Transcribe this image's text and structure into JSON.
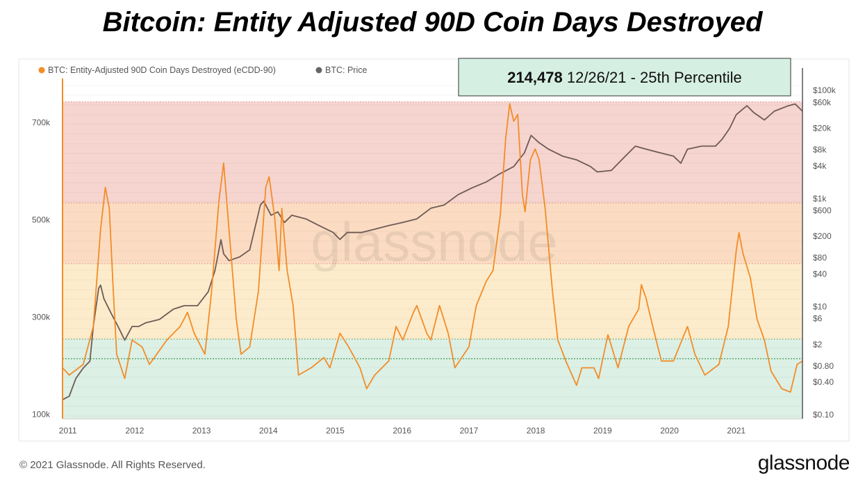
{
  "title": "Bitcoin: Entity Adjusted 90D Coin Days Destroyed",
  "footer": {
    "copyright": "© 2021 Glassnode. All Rights Reserved.",
    "logo": "glassnode"
  },
  "watermark": "glassnode",
  "annotation": {
    "value": "214,478",
    "text": " 12/26/21 - 25th Percentile"
  },
  "chart_data": {
    "type": "line",
    "title": "Bitcoin: Entity Adjusted 90D Coin Days Destroyed",
    "legend_position": "top-left",
    "x_ticks": [
      "2011",
      "2012",
      "2013",
      "2014",
      "2015",
      "2016",
      "2017",
      "2018",
      "2019",
      "2020",
      "2021"
    ],
    "xlim": [
      2010.92,
      2021.99
    ],
    "y_left": {
      "ticks": [
        "100k",
        "300k",
        "500k",
        "700k"
      ],
      "tick_values": [
        100,
        300,
        500,
        700
      ],
      "unit": "k",
      "ylim": [
        91,
        791
      ]
    },
    "y_right": {
      "scale": "log",
      "ticks": [
        "$100k",
        "$60k",
        "$20k",
        "$8k",
        "$4k",
        "$1k",
        "$600",
        "$200",
        "$80",
        "$40",
        "$10",
        "$6",
        "$2",
        "$0.80",
        "$0.40",
        "$0.10"
      ],
      "tick_values": [
        100000,
        60000,
        20000,
        8000,
        4000,
        1000,
        600,
        200,
        80,
        40,
        10,
        6,
        2,
        0.8,
        0.4,
        0.1
      ],
      "ylim": [
        0.084,
        166000
      ]
    },
    "bands": [
      {
        "from": 535,
        "to": 743,
        "color": "#f6d4cf"
      },
      {
        "from": 410,
        "to": 535,
        "color": "#fbdcc2"
      },
      {
        "from": 255,
        "to": 410,
        "color": "#fdeccb"
      },
      {
        "from": 91,
        "to": 255,
        "color": "#dcf0e5"
      }
    ],
    "reference_line": {
      "value": 214.478,
      "color": "#3f9a55"
    },
    "series": [
      {
        "name": "BTC: Entity-Adjusted 90D Coin Days Destroyed (eCDD-90)",
        "color": "#f28c28",
        "axis": "left",
        "x": [
          2010.92,
          2011.02,
          2011.23,
          2011.38,
          2011.49,
          2011.56,
          2011.62,
          2011.68,
          2011.73,
          2011.85,
          2011.96,
          2012.11,
          2012.22,
          2012.48,
          2012.68,
          2012.79,
          2012.89,
          2013.05,
          2013.15,
          2013.26,
          2013.33,
          2013.41,
          2013.52,
          2013.59,
          2013.72,
          2013.85,
          2013.96,
          2014.01,
          2014.09,
          2014.16,
          2014.2,
          2014.28,
          2014.37,
          2014.45,
          2014.64,
          2014.83,
          2014.92,
          2015.07,
          2015.2,
          2015.37,
          2015.47,
          2015.59,
          2015.8,
          2015.91,
          2016.01,
          2016.17,
          2016.22,
          2016.37,
          2016.43,
          2016.56,
          2016.69,
          2016.79,
          2017.0,
          2017.11,
          2017.26,
          2017.36,
          2017.47,
          2017.55,
          2017.61,
          2017.67,
          2017.73,
          2017.8,
          2017.84,
          2017.92,
          2017.99,
          2018.05,
          2018.14,
          2018.25,
          2018.33,
          2018.45,
          2018.61,
          2018.69,
          2018.87,
          2018.94,
          2019.08,
          2019.23,
          2019.39,
          2019.54,
          2019.58,
          2019.65,
          2019.75,
          2019.88,
          2020.06,
          2020.27,
          2020.38,
          2020.53,
          2020.74,
          2020.88,
          2021.0,
          2021.04,
          2021.1,
          2021.21,
          2021.31,
          2021.42,
          2021.52,
          2021.68,
          2021.81,
          2021.91,
          2021.99
        ],
        "values": [
          196,
          181,
          203,
          281,
          481,
          567,
          524,
          353,
          224,
          174,
          253,
          239,
          203,
          253,
          281,
          310,
          267,
          224,
          353,
          539,
          617,
          481,
          296,
          224,
          239,
          353,
          567,
          589,
          510,
          396,
          524,
          396,
          324,
          181,
          196,
          217,
          196,
          267,
          239,
          196,
          153,
          181,
          210,
          281,
          253,
          310,
          324,
          267,
          253,
          324,
          267,
          196,
          239,
          324,
          374,
          396,
          510,
          667,
          739,
          703,
          717,
          553,
          517,
          624,
          646,
          624,
          524,
          353,
          253,
          210,
          160,
          196,
          196,
          174,
          264,
          196,
          281,
          317,
          367,
          339,
          281,
          210,
          210,
          281,
          224,
          181,
          203,
          281,
          439,
          474,
          431,
          381,
          296,
          253,
          189,
          153,
          146,
          203,
          210
        ]
      },
      {
        "name": "BTC: Price",
        "color": "#6e5a56",
        "axis": "right",
        "x": [
          2010.92,
          2011.02,
          2011.12,
          2011.23,
          2011.33,
          2011.38,
          2011.46,
          2011.49,
          2011.54,
          2011.64,
          2011.75,
          2011.85,
          2011.96,
          2012.06,
          2012.16,
          2012.37,
          2012.58,
          2012.74,
          2012.94,
          2013.1,
          2013.2,
          2013.29,
          2013.33,
          2013.41,
          2013.57,
          2013.72,
          2013.88,
          2013.93,
          2014.04,
          2014.14,
          2014.24,
          2014.35,
          2014.56,
          2014.76,
          2014.97,
          2015.07,
          2015.18,
          2015.39,
          2015.59,
          2015.8,
          2016.01,
          2016.22,
          2016.43,
          2016.63,
          2016.84,
          2017.05,
          2017.26,
          2017.47,
          2017.67,
          2017.83,
          2017.93,
          2018.04,
          2018.19,
          2018.4,
          2018.61,
          2018.82,
          2018.92,
          2019.13,
          2019.34,
          2019.49,
          2019.65,
          2019.86,
          2020.06,
          2020.17,
          2020.27,
          2020.48,
          2020.69,
          2020.79,
          2020.9,
          2021.0,
          2021.16,
          2021.26,
          2021.42,
          2021.57,
          2021.78,
          2021.88,
          2021.99
        ],
        "values": [
          0.19,
          0.22,
          0.47,
          0.73,
          0.98,
          4.3,
          21.8,
          25,
          14,
          7.8,
          4.3,
          2.4,
          4.3,
          4.3,
          5.0,
          5.8,
          9,
          10.4,
          10.4,
          18.8,
          46,
          173,
          95,
          71,
          83,
          112,
          760,
          890,
          490,
          565,
          360,
          490,
          420,
          315,
          235,
          175,
          235,
          235,
          270,
          315,
          360,
          420,
          660,
          760,
          1180,
          1580,
          2030,
          2900,
          3900,
          7000,
          14700,
          11000,
          8200,
          6100,
          5200,
          3900,
          3100,
          3300,
          6100,
          9300,
          8200,
          7000,
          6100,
          4500,
          8200,
          9300,
          9300,
          12600,
          19800,
          35800,
          52000,
          38900,
          28400,
          41300,
          52000,
          56000,
          41300
        ]
      }
    ]
  }
}
